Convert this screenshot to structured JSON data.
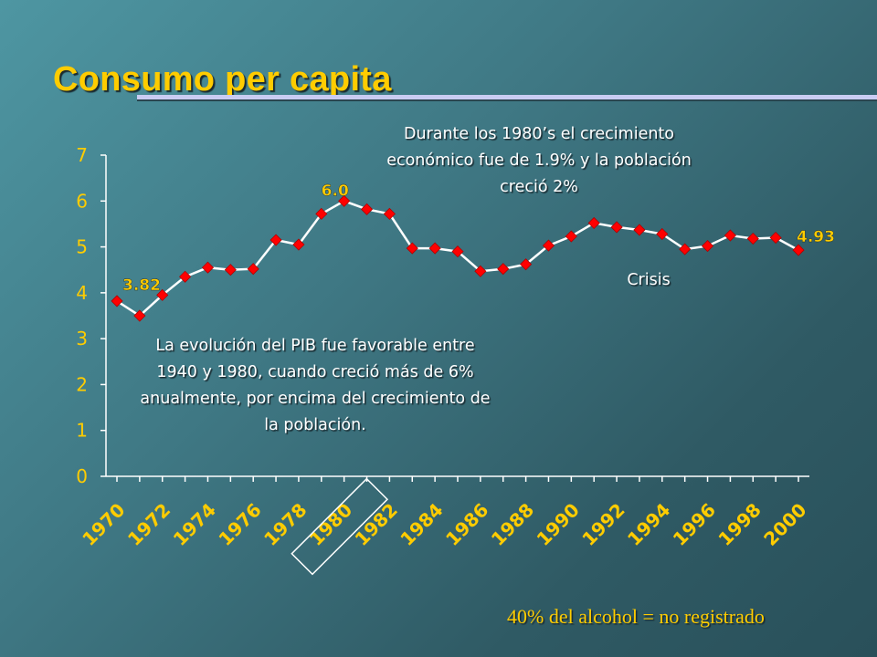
{
  "title": "Consumo per capita",
  "notes": {
    "top": "Durante los 1980’s el crecimiento económico fue de 1.9% y la población creció 2%",
    "left": "La evolución del PIB fue favorable entre 1940 y 1980, cuando creció más de 6% anualmente, por encima del crecimiento de la población.",
    "crisis": "Crisis"
  },
  "footnote": "40% del alcohol = no registrado",
  "colors": {
    "title": "#ffcc00",
    "line": "#ffffff",
    "marker": "#ff0000",
    "axis": "#ffffff",
    "tick_text": "#ffcc00",
    "highlight_box": "#ffffff"
  },
  "chart_data": {
    "type": "line",
    "title": "",
    "xlabel": "",
    "ylabel": "",
    "ylim": [
      0,
      7
    ],
    "yticks": [
      0,
      1,
      2,
      3,
      4,
      5,
      6,
      7
    ],
    "xticks": [
      "1970",
      "1972",
      "1974",
      "1976",
      "1978",
      "1980",
      "1982",
      "1984",
      "1986",
      "1988",
      "1990",
      "1992",
      "1994",
      "1996",
      "1998",
      "2000"
    ],
    "highlighted_xtick": "1980",
    "grid": false,
    "series": [
      {
        "name": "",
        "x": [
          1970,
          1971,
          1972,
          1973,
          1974,
          1975,
          1976,
          1977,
          1978,
          1979,
          1980,
          1981,
          1982,
          1983,
          1984,
          1985,
          1986,
          1987,
          1988,
          1989,
          1990,
          1991,
          1992,
          1993,
          1994,
          1995,
          1996,
          1997,
          1998,
          1999,
          2000
        ],
        "values": [
          3.82,
          3.5,
          3.95,
          4.35,
          4.55,
          4.5,
          4.52,
          5.15,
          5.05,
          5.72,
          6.0,
          5.82,
          5.72,
          4.97,
          4.97,
          4.9,
          4.47,
          4.52,
          4.62,
          5.03,
          5.23,
          5.52,
          5.43,
          5.37,
          5.28,
          4.95,
          5.02,
          5.25,
          5.18,
          5.2,
          4.93
        ]
      }
    ],
    "data_labels": [
      {
        "x": 1970,
        "text": "3.82"
      },
      {
        "x": 1980,
        "text": "6.0"
      },
      {
        "x": 2000,
        "text": "4.93"
      }
    ]
  }
}
